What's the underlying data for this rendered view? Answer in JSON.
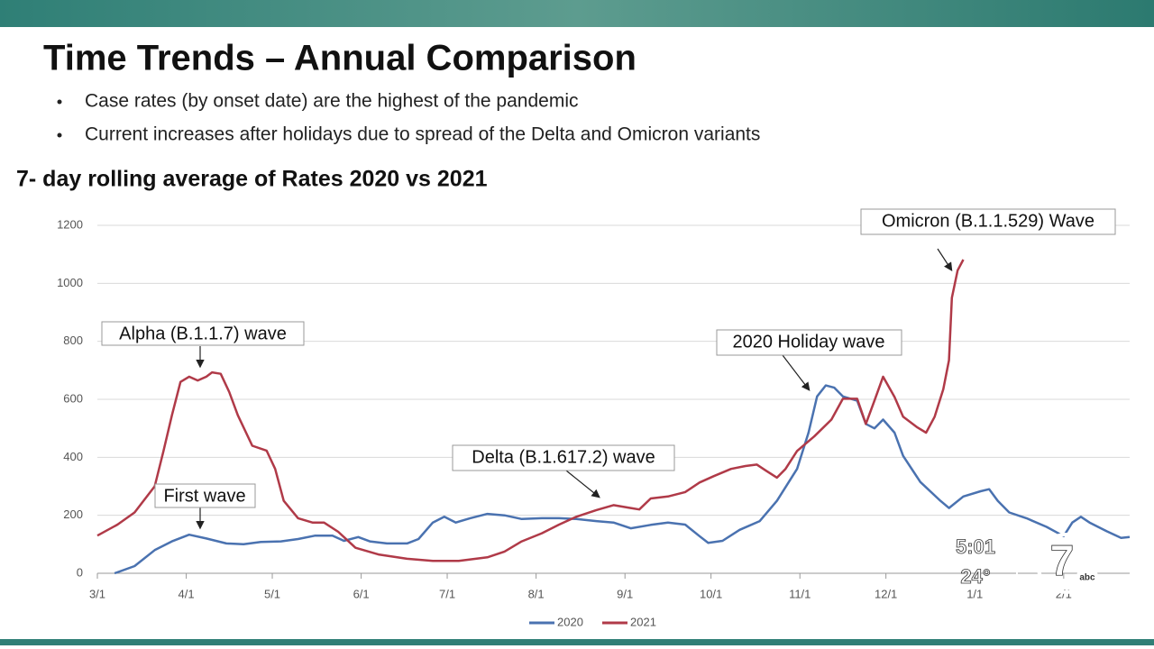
{
  "slide": {
    "title": "Time Trends – Annual Comparison",
    "bullets": [
      "Case rates (by onset date) are the highest of the pandemic",
      "Current increases after holidays due to spread of the Delta and Omicron variants"
    ]
  },
  "chart_data": {
    "type": "line",
    "title": "7- day rolling average of Rates 2020 vs 2021",
    "xlim": [
      0,
      360
    ],
    "xticks": [
      {
        "value": 0,
        "label": "3/1"
      },
      {
        "value": 31,
        "label": "4/1"
      },
      {
        "value": 61,
        "label": "5/1"
      },
      {
        "value": 92,
        "label": "6/1"
      },
      {
        "value": 122,
        "label": "7/1"
      },
      {
        "value": 153,
        "label": "8/1"
      },
      {
        "value": 184,
        "label": "9/1"
      },
      {
        "value": 214,
        "label": "10/1"
      },
      {
        "value": 245,
        "label": "11/1"
      },
      {
        "value": 275,
        "label": "12/1"
      },
      {
        "value": 306,
        "label": "1/1"
      },
      {
        "value": 337,
        "label": "2/1"
      }
    ],
    "ylim": [
      0,
      1200
    ],
    "yticks": [
      0,
      200,
      400,
      600,
      800,
      1000,
      1200
    ],
    "grid": true,
    "legend": "bottom",
    "series": [
      {
        "name": "2020",
        "color": "#4a72b0",
        "x": [
          6,
          13,
          20,
          26,
          32,
          38,
          45,
          51,
          57,
          64,
          70,
          76,
          82,
          86,
          91,
          95,
          101,
          108,
          112,
          117,
          121,
          125,
          130,
          136,
          142,
          148,
          155,
          161,
          167,
          174,
          180,
          186,
          193,
          199,
          205,
          210,
          213,
          218,
          224,
          231,
          237,
          244,
          248,
          251,
          254,
          257,
          260,
          265,
          268,
          271,
          274,
          278,
          281,
          287,
          294,
          297,
          302,
          308,
          311,
          314,
          318,
          324,
          331,
          337,
          340,
          343,
          346,
          352,
          357,
          360
        ],
        "values": [
          0,
          25,
          80,
          110,
          133,
          120,
          103,
          100,
          108,
          110,
          118,
          130,
          130,
          112,
          125,
          110,
          103,
          103,
          118,
          175,
          195,
          175,
          190,
          205,
          200,
          187,
          190,
          190,
          187,
          180,
          175,
          155,
          167,
          175,
          168,
          128,
          105,
          112,
          150,
          180,
          250,
          360,
          485,
          610,
          648,
          640,
          610,
          595,
          515,
          500,
          530,
          485,
          405,
          315,
          250,
          225,
          265,
          283,
          290,
          250,
          210,
          190,
          160,
          128,
          175,
          195,
          175,
          145,
          122,
          125
        ]
      },
      {
        "name": "2021",
        "color": "#b03a48",
        "x": [
          0,
          7,
          13,
          20,
          23,
          26,
          29,
          32,
          35,
          38,
          40,
          43,
          46,
          49,
          54,
          59,
          62,
          65,
          70,
          75,
          79,
          84,
          90,
          98,
          108,
          117,
          126,
          136,
          142,
          148,
          155,
          161,
          167,
          174,
          180,
          186,
          189,
          193,
          199,
          205,
          210,
          215,
          221,
          226,
          230,
          233,
          237,
          240,
          244,
          250,
          256,
          260,
          265,
          268,
          271,
          274,
          278,
          281,
          286,
          289,
          292,
          295,
          297,
          298,
          300,
          302
        ],
        "values": [
          130,
          168,
          210,
          300,
          420,
          545,
          660,
          678,
          665,
          678,
          693,
          688,
          625,
          545,
          440,
          423,
          360,
          250,
          190,
          175,
          175,
          143,
          88,
          65,
          50,
          43,
          43,
          55,
          75,
          110,
          138,
          168,
          195,
          218,
          235,
          225,
          220,
          258,
          265,
          280,
          313,
          335,
          360,
          370,
          375,
          355,
          330,
          360,
          422,
          472,
          530,
          602,
          602,
          515,
          595,
          678,
          608,
          540,
          503,
          485,
          540,
          635,
          735,
          950,
          1045,
          1082
        ]
      }
    ],
    "annotations": [
      "Omicron (B.1.1.529) Wave",
      "Alpha (B.1.1.7) wave",
      "2020 Holiday wave",
      "Delta (B.1.617.2) wave",
      "First wave"
    ]
  },
  "station_bug": {
    "time": "5:01",
    "temperature": "24°",
    "channel": "7",
    "network": "abc"
  }
}
